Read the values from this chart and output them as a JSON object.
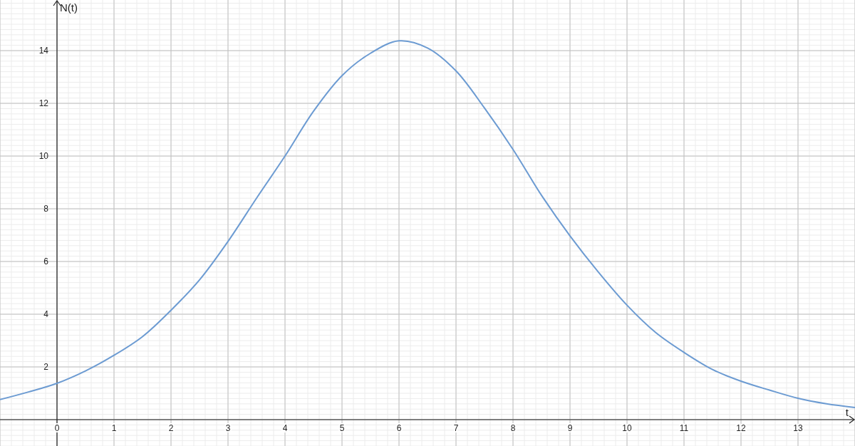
{
  "chart_data": {
    "type": "line",
    "xlabel": "t",
    "ylabel": "N(t)",
    "xlim": [
      -1,
      14
    ],
    "ylim": [
      -1,
      15.92
    ],
    "xticks": [
      0,
      1,
      2,
      3,
      4,
      5,
      6,
      7,
      8,
      9,
      10,
      11,
      12,
      13
    ],
    "yticks": [
      2,
      4,
      6,
      8,
      10,
      12,
      14
    ],
    "grid": true,
    "marker": "none",
    "line_style": "solid",
    "series": [
      {
        "color": "#6c9bd2",
        "x": [
          -1,
          -0.5,
          0,
          0.5,
          1,
          1.5,
          2,
          2.5,
          3,
          3.5,
          4,
          4.5,
          5,
          5.5,
          6,
          6.5,
          7,
          7.5,
          8,
          8.5,
          9,
          9.5,
          10,
          10.5,
          11,
          11.5,
          12,
          12.5,
          13,
          13.5,
          14
        ],
        "values": [
          0.76,
          1.05,
          1.38,
          1.85,
          2.44,
          3.15,
          4.15,
          5.3,
          6.76,
          8.4,
          10.0,
          11.7,
          13.05,
          13.9,
          14.37,
          14.1,
          13.23,
          11.82,
          10.25,
          8.51,
          6.97,
          5.59,
          4.34,
          3.31,
          2.55,
          1.9,
          1.46,
          1.12,
          0.81,
          0.6,
          0.46
        ]
      }
    ]
  }
}
